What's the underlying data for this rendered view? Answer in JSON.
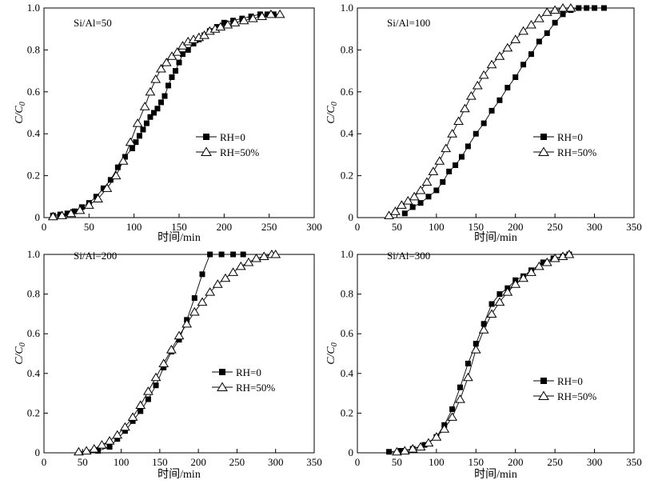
{
  "chart_data": [
    {
      "type": "scatter",
      "title": "Si/Al=50",
      "xlabel": "时间/min",
      "ylabel_main": "C/C",
      "ylabel_sub": "0",
      "xlim": [
        0,
        300
      ],
      "ylim": [
        0,
        1.0
      ],
      "xticks": [
        0,
        50,
        100,
        150,
        200,
        250,
        300
      ],
      "yticks": [
        0,
        0.2,
        0.4,
        0.6,
        0.8,
        1.0
      ],
      "xtick_labels": [
        "0",
        "50",
        "100",
        "150",
        "200",
        "250",
        "300"
      ],
      "ytick_labels": [
        "0",
        "0.2",
        "0.4",
        "0.6",
        "0.8",
        "1.0"
      ],
      "legend_position": "center-right",
      "series": [
        {
          "name": "RH=0",
          "marker": "filled-square",
          "x": [
            10,
            18,
            26,
            34,
            42,
            50,
            58,
            66,
            74,
            82,
            90,
            98,
            102,
            106,
            110,
            114,
            118,
            122,
            126,
            130,
            134,
            138,
            142,
            146,
            150,
            154,
            160,
            166,
            172,
            178,
            184,
            192,
            200,
            210,
            220,
            230,
            240,
            248,
            255
          ],
          "y": [
            0.01,
            0.015,
            0.02,
            0.03,
            0.05,
            0.07,
            0.1,
            0.14,
            0.18,
            0.24,
            0.29,
            0.33,
            0.36,
            0.39,
            0.42,
            0.45,
            0.48,
            0.5,
            0.52,
            0.55,
            0.58,
            0.63,
            0.67,
            0.7,
            0.74,
            0.78,
            0.8,
            0.83,
            0.85,
            0.87,
            0.89,
            0.91,
            0.93,
            0.94,
            0.95,
            0.96,
            0.97,
            0.97,
            0.97
          ]
        },
        {
          "name": "RH=50%",
          "marker": "open-triangle",
          "x": [
            10,
            20,
            30,
            40,
            50,
            60,
            70,
            80,
            88,
            96,
            104,
            112,
            118,
            124,
            130,
            136,
            142,
            148,
            154,
            160,
            166,
            172,
            178,
            184,
            190,
            196,
            204,
            212,
            222,
            232,
            242,
            252,
            262
          ],
          "y": [
            0.005,
            0.01,
            0.02,
            0.035,
            0.06,
            0.09,
            0.14,
            0.2,
            0.27,
            0.36,
            0.45,
            0.53,
            0.6,
            0.66,
            0.71,
            0.74,
            0.77,
            0.79,
            0.82,
            0.84,
            0.85,
            0.86,
            0.87,
            0.89,
            0.9,
            0.91,
            0.92,
            0.93,
            0.94,
            0.95,
            0.96,
            0.97,
            0.97
          ]
        }
      ]
    },
    {
      "type": "scatter",
      "title": "Si/Al=100",
      "xlabel": "时间/min",
      "ylabel_main": "C/C",
      "ylabel_sub": "0",
      "xlim": [
        0,
        350
      ],
      "ylim": [
        0,
        1.0
      ],
      "xticks": [
        0,
        50,
        100,
        150,
        200,
        250,
        300,
        350
      ],
      "yticks": [
        0,
        0.2,
        0.4,
        0.6,
        0.8,
        1.0
      ],
      "xtick_labels": [
        "0",
        "50",
        "100",
        "150",
        "200",
        "250",
        "300",
        "350"
      ],
      "ytick_labels": [
        "0",
        "0.2",
        "0.4",
        "0.6",
        "0.8",
        "1.0"
      ],
      "legend_position": "center-right",
      "series": [
        {
          "name": "RH=0",
          "marker": "filled-square",
          "x": [
            60,
            70,
            80,
            90,
            100,
            108,
            116,
            124,
            132,
            140,
            150,
            160,
            170,
            180,
            190,
            200,
            210,
            220,
            230,
            240,
            250,
            260,
            270,
            280,
            290,
            300,
            312
          ],
          "y": [
            0.02,
            0.05,
            0.07,
            0.1,
            0.13,
            0.17,
            0.22,
            0.25,
            0.29,
            0.34,
            0.4,
            0.45,
            0.51,
            0.56,
            0.62,
            0.67,
            0.73,
            0.78,
            0.84,
            0.88,
            0.93,
            0.97,
            0.99,
            1.0,
            1.0,
            1.0,
            1.0
          ]
        },
        {
          "name": "RH=50%",
          "marker": "open-triangle",
          "x": [
            40,
            48,
            56,
            64,
            72,
            80,
            88,
            96,
            104,
            112,
            120,
            128,
            136,
            144,
            152,
            160,
            170,
            180,
            190,
            200,
            210,
            220,
            230,
            240,
            250,
            260,
            270
          ],
          "y": [
            0.01,
            0.03,
            0.06,
            0.08,
            0.1,
            0.13,
            0.17,
            0.22,
            0.27,
            0.33,
            0.4,
            0.46,
            0.52,
            0.58,
            0.63,
            0.68,
            0.73,
            0.77,
            0.81,
            0.85,
            0.89,
            0.92,
            0.95,
            0.98,
            0.99,
            1.0,
            1.0
          ]
        }
      ]
    },
    {
      "type": "scatter",
      "title": "Si/Al=200",
      "xlabel": "时间/min",
      "ylabel_main": "C/C",
      "ylabel_sub": "0",
      "xlim": [
        0,
        350
      ],
      "ylim": [
        0,
        1.0
      ],
      "xticks": [
        0,
        50,
        100,
        150,
        200,
        250,
        300,
        350
      ],
      "yticks": [
        0,
        0.2,
        0.4,
        0.6,
        0.8,
        1.0
      ],
      "xtick_labels": [
        "0",
        "50",
        "100",
        "150",
        "200",
        "250",
        "300",
        "350"
      ],
      "ytick_labels": [
        "0",
        "0.2",
        "0.4",
        "0.6",
        "0.8",
        "1.0"
      ],
      "legend_position": "center-right",
      "series": [
        {
          "name": "RH=0",
          "marker": "filled-square",
          "x": [
            70,
            85,
            95,
            105,
            115,
            125,
            135,
            145,
            155,
            165,
            175,
            185,
            195,
            205,
            215,
            230,
            245,
            258
          ],
          "y": [
            0.01,
            0.03,
            0.07,
            0.11,
            0.16,
            0.21,
            0.27,
            0.34,
            0.43,
            0.51,
            0.57,
            0.67,
            0.78,
            0.9,
            1.0,
            1.0,
            1.0,
            1.0
          ]
        },
        {
          "name": "RH=50%",
          "marker": "open-triangle",
          "x": [
            45,
            55,
            65,
            75,
            85,
            95,
            105,
            115,
            125,
            135,
            145,
            155,
            165,
            175,
            185,
            195,
            205,
            215,
            225,
            235,
            245,
            255,
            265,
            275,
            285,
            295,
            300
          ],
          "y": [
            0.005,
            0.01,
            0.02,
            0.04,
            0.06,
            0.09,
            0.13,
            0.18,
            0.24,
            0.31,
            0.38,
            0.45,
            0.52,
            0.59,
            0.65,
            0.71,
            0.76,
            0.81,
            0.85,
            0.88,
            0.91,
            0.94,
            0.96,
            0.98,
            0.99,
            1.0,
            1.0
          ]
        }
      ]
    },
    {
      "type": "scatter",
      "title": "Si/Al=300",
      "xlabel": "时间/min",
      "ylabel_main": "C/C",
      "ylabel_sub": "0",
      "xlim": [
        0,
        350
      ],
      "ylim": [
        0,
        1.0
      ],
      "xticks": [
        0,
        50,
        100,
        150,
        200,
        250,
        300,
        350
      ],
      "yticks": [
        0,
        0.2,
        0.4,
        0.6,
        0.8,
        1.0
      ],
      "xtick_labels": [
        "0",
        "50",
        "100",
        "150",
        "200",
        "250",
        "300",
        "350"
      ],
      "ytick_labels": [
        "0",
        "0.2",
        "0.4",
        "0.6",
        "0.8",
        "1.0"
      ],
      "legend_position": "center-right",
      "series": [
        {
          "name": "RH=0",
          "marker": "filled-square",
          "x": [
            40,
            55,
            70,
            85,
            100,
            110,
            120,
            130,
            140,
            150,
            160,
            170,
            180,
            190,
            200,
            210,
            220,
            235,
            248,
            260,
            268
          ],
          "y": [
            0.005,
            0.01,
            0.02,
            0.04,
            0.08,
            0.14,
            0.22,
            0.33,
            0.45,
            0.55,
            0.65,
            0.75,
            0.8,
            0.83,
            0.87,
            0.89,
            0.92,
            0.96,
            0.98,
            0.99,
            1.0
          ]
        },
        {
          "name": "RH=50%",
          "marker": "open-triangle",
          "x": [
            50,
            60,
            70,
            80,
            90,
            100,
            110,
            120,
            130,
            140,
            150,
            160,
            170,
            180,
            190,
            200,
            210,
            220,
            230,
            240,
            250,
            260,
            268
          ],
          "y": [
            0.005,
            0.01,
            0.02,
            0.03,
            0.05,
            0.08,
            0.12,
            0.18,
            0.27,
            0.38,
            0.52,
            0.62,
            0.7,
            0.76,
            0.81,
            0.85,
            0.88,
            0.91,
            0.94,
            0.96,
            0.98,
            0.99,
            1.0
          ]
        }
      ]
    }
  ]
}
